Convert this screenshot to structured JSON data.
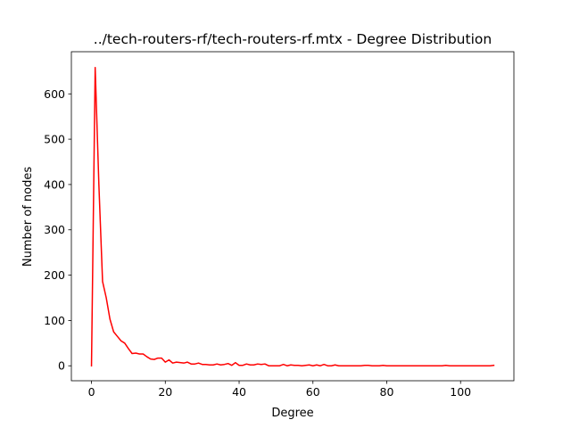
{
  "chart_data": {
    "type": "line",
    "title": "../tech-routers-rf/tech-routers-rf.mtx - Degree Distribution",
    "xlabel": "Degree",
    "ylabel": "Number of nodes",
    "xlim": [
      -5.45,
      114.45
    ],
    "ylim": [
      -33,
      693
    ],
    "xticks": [
      0,
      20,
      40,
      60,
      80,
      100
    ],
    "yticks": [
      0,
      100,
      200,
      300,
      400,
      500,
      600
    ],
    "grid": false,
    "legend": "none",
    "series": [
      {
        "color": "#ff0000",
        "x": [
          0,
          1,
          2,
          3,
          4,
          5,
          6,
          7,
          8,
          9,
          10,
          11,
          12,
          13,
          14,
          15,
          16,
          17,
          18,
          19,
          20,
          21,
          22,
          23,
          24,
          25,
          26,
          27,
          28,
          29,
          30,
          31,
          32,
          33,
          34,
          35,
          36,
          37,
          38,
          39,
          40,
          41,
          42,
          43,
          44,
          45,
          46,
          47,
          48,
          49,
          50,
          51,
          52,
          53,
          54,
          55,
          56,
          57,
          58,
          59,
          60,
          61,
          62,
          63,
          64,
          65,
          66,
          67,
          68,
          69,
          70,
          71,
          72,
          73,
          74,
          75,
          76,
          77,
          78,
          79,
          80,
          81,
          82,
          83,
          84,
          85,
          86,
          87,
          88,
          89,
          90,
          91,
          92,
          93,
          94,
          95,
          96,
          97,
          98,
          99,
          100,
          101,
          102,
          103,
          104,
          105,
          106,
          107,
          108,
          109
        ],
        "values": [
          0,
          658,
          400,
          186,
          150,
          103,
          75,
          65,
          55,
          50,
          38,
          27,
          28,
          26,
          26,
          20,
          15,
          14,
          17,
          17,
          8,
          13,
          6,
          8,
          7,
          6,
          8,
          4,
          4,
          6,
          3,
          3,
          2,
          2,
          4,
          2,
          3,
          5,
          1,
          7,
          1,
          1,
          4,
          2,
          2,
          4,
          3,
          4,
          0,
          0,
          0,
          0,
          3,
          0,
          2,
          1,
          1,
          0,
          1,
          2,
          0,
          2,
          0,
          3,
          0,
          0,
          2,
          0,
          0,
          0,
          0,
          0,
          0,
          0,
          1,
          1,
          0,
          0,
          0,
          1,
          0,
          0,
          0,
          0,
          0,
          0,
          0,
          0,
          0,
          0,
          0,
          0,
          0,
          0,
          0,
          0,
          1,
          0,
          0,
          0,
          0,
          0,
          0,
          0,
          0,
          0,
          0,
          0,
          0,
          1
        ]
      }
    ]
  }
}
